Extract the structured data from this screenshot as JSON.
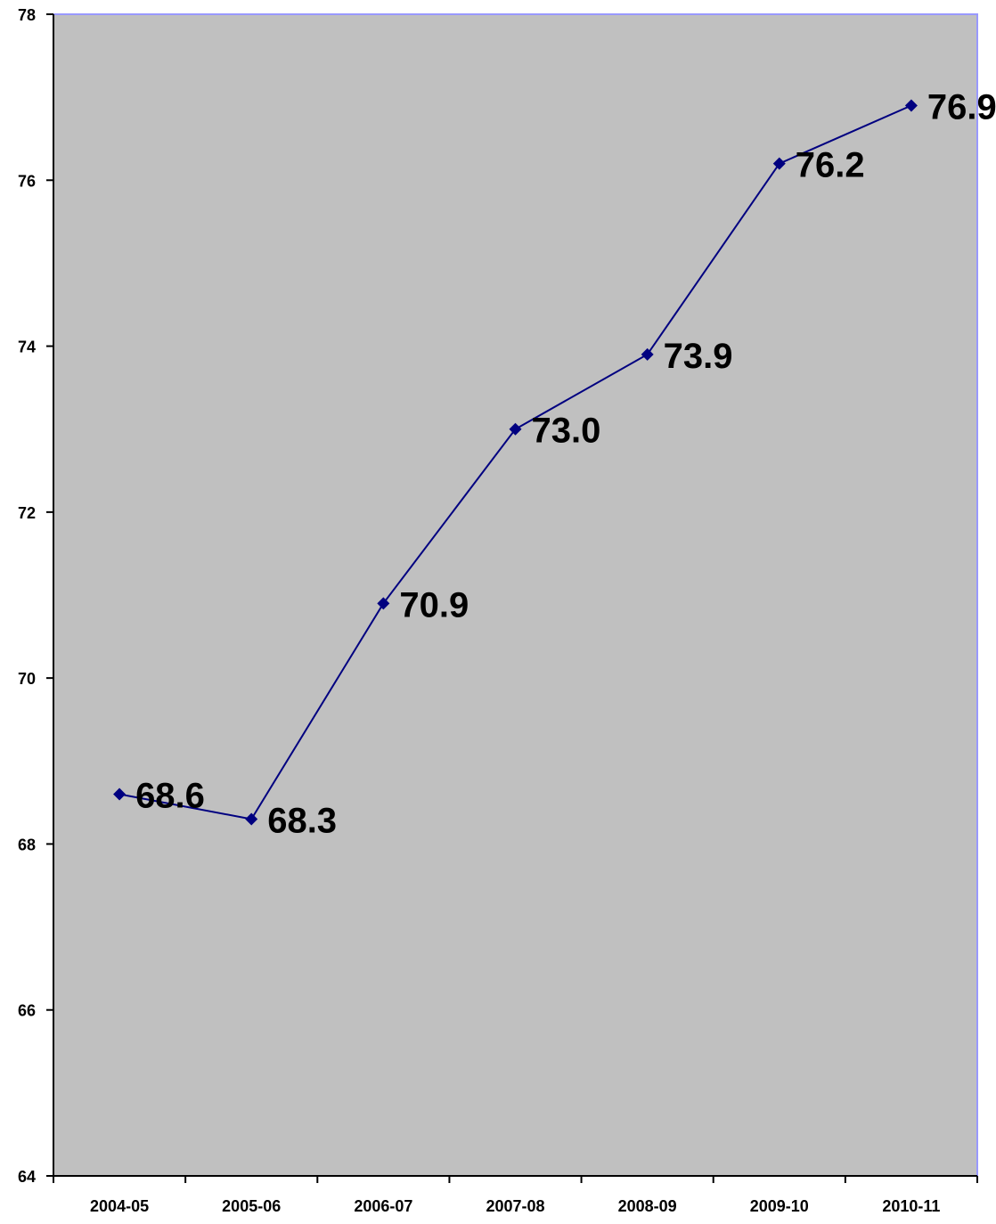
{
  "chart_data": {
    "type": "line",
    "title": "",
    "xlabel": "",
    "ylabel": "",
    "categories": [
      "2004-05",
      "2005-06",
      "2006-07",
      "2007-08",
      "2008-09",
      "2009-10",
      "2010-11"
    ],
    "series": [
      {
        "values": [
          68.6,
          68.3,
          70.9,
          73.0,
          73.9,
          76.2,
          76.9
        ],
        "data_labels": [
          "68.6",
          "68.3",
          "70.9",
          "73.0",
          "73.9",
          "76.2",
          "76.9"
        ]
      }
    ],
    "ylim": [
      64,
      78
    ],
    "y_ticks": [
      64,
      66,
      68,
      70,
      72,
      74,
      76,
      78
    ],
    "y_tick_labels": [
      "64",
      "66",
      "68",
      "70",
      "72",
      "74",
      "76",
      "78"
    ],
    "grid": false,
    "legend": "none",
    "marker": "diamond"
  },
  "colors": {
    "plot_background": "#c0c0c0",
    "plot_border": "#9999ff",
    "series_line": "#000080",
    "axis": "#000000",
    "text": "#000000"
  }
}
